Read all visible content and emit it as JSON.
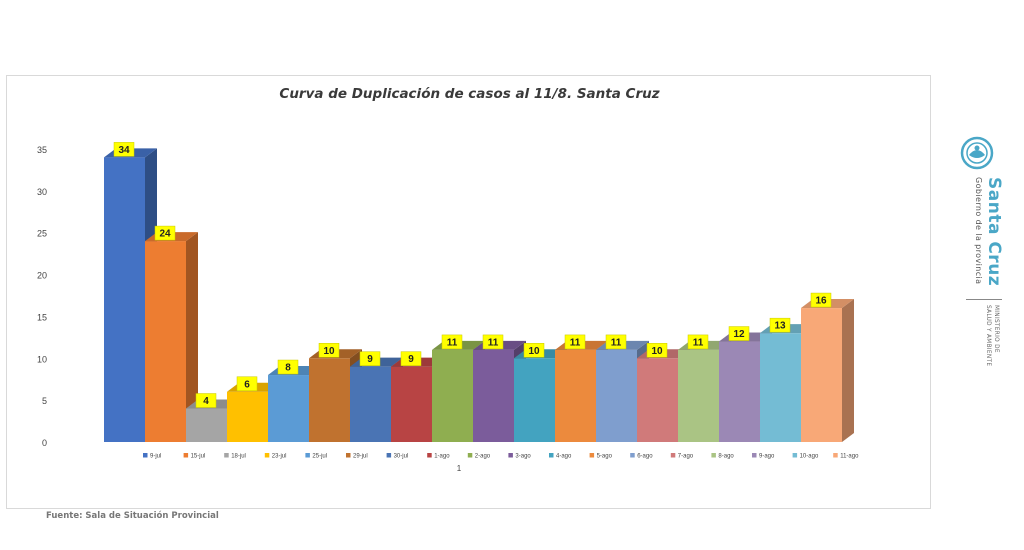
{
  "chart_data": {
    "type": "bar",
    "title": "Curva de Duplicación de casos al 11/8. Santa Cruz",
    "category_axis_label": "1",
    "ylim": [
      0,
      35
    ],
    "yticks": [
      0,
      5,
      10,
      15,
      20,
      25,
      30,
      35
    ],
    "grid": false,
    "legend_position": "bottom",
    "series": [
      {
        "name": "9-jul",
        "value": 34,
        "color": "#4472c4"
      },
      {
        "name": "15-jul",
        "value": 24,
        "color": "#ed7d31"
      },
      {
        "name": "18-jul",
        "value": 4,
        "color": "#a5a5a5"
      },
      {
        "name": "23-jul",
        "value": 6,
        "color": "#ffc000"
      },
      {
        "name": "25-jul",
        "value": 8,
        "color": "#5b9bd5"
      },
      {
        "name": "29-jul",
        "value": 10,
        "color": "#c0722f"
      },
      {
        "name": "30-jul",
        "value": 9,
        "color": "#4a74b4"
      },
      {
        "name": "1-ago",
        "value": 9,
        "color": "#b84444"
      },
      {
        "name": "2-ago",
        "value": 11,
        "color": "#8fae50"
      },
      {
        "name": "3-ago",
        "value": 11,
        "color": "#7b5c9b"
      },
      {
        "name": "4-ago",
        "value": 10,
        "color": "#43a3c0"
      },
      {
        "name": "5-ago",
        "value": 11,
        "color": "#ec8a3d"
      },
      {
        "name": "6-ago",
        "value": 11,
        "color": "#7f9ece"
      },
      {
        "name": "7-ago",
        "value": 10,
        "color": "#d07a7a"
      },
      {
        "name": "8-ago",
        "value": 11,
        "color": "#aac484"
      },
      {
        "name": "9-ago",
        "value": 12,
        "color": "#9b88b5"
      },
      {
        "name": "10-ago",
        "value": 13,
        "color": "#74bcd4"
      },
      {
        "name": "11-ago",
        "value": 16,
        "color": "#f8a877"
      }
    ]
  },
  "source": "Fuente: Sala de Situación Provincial",
  "brand": {
    "name": "Santa Cruz",
    "subtitle": "Gobierno de la provincia",
    "ministry_line1": "MINISTERIO DE",
    "ministry_line2": "SALUD Y AMBIENTE",
    "icon": "provincial-seal-icon",
    "color": "#4aa7c7"
  }
}
